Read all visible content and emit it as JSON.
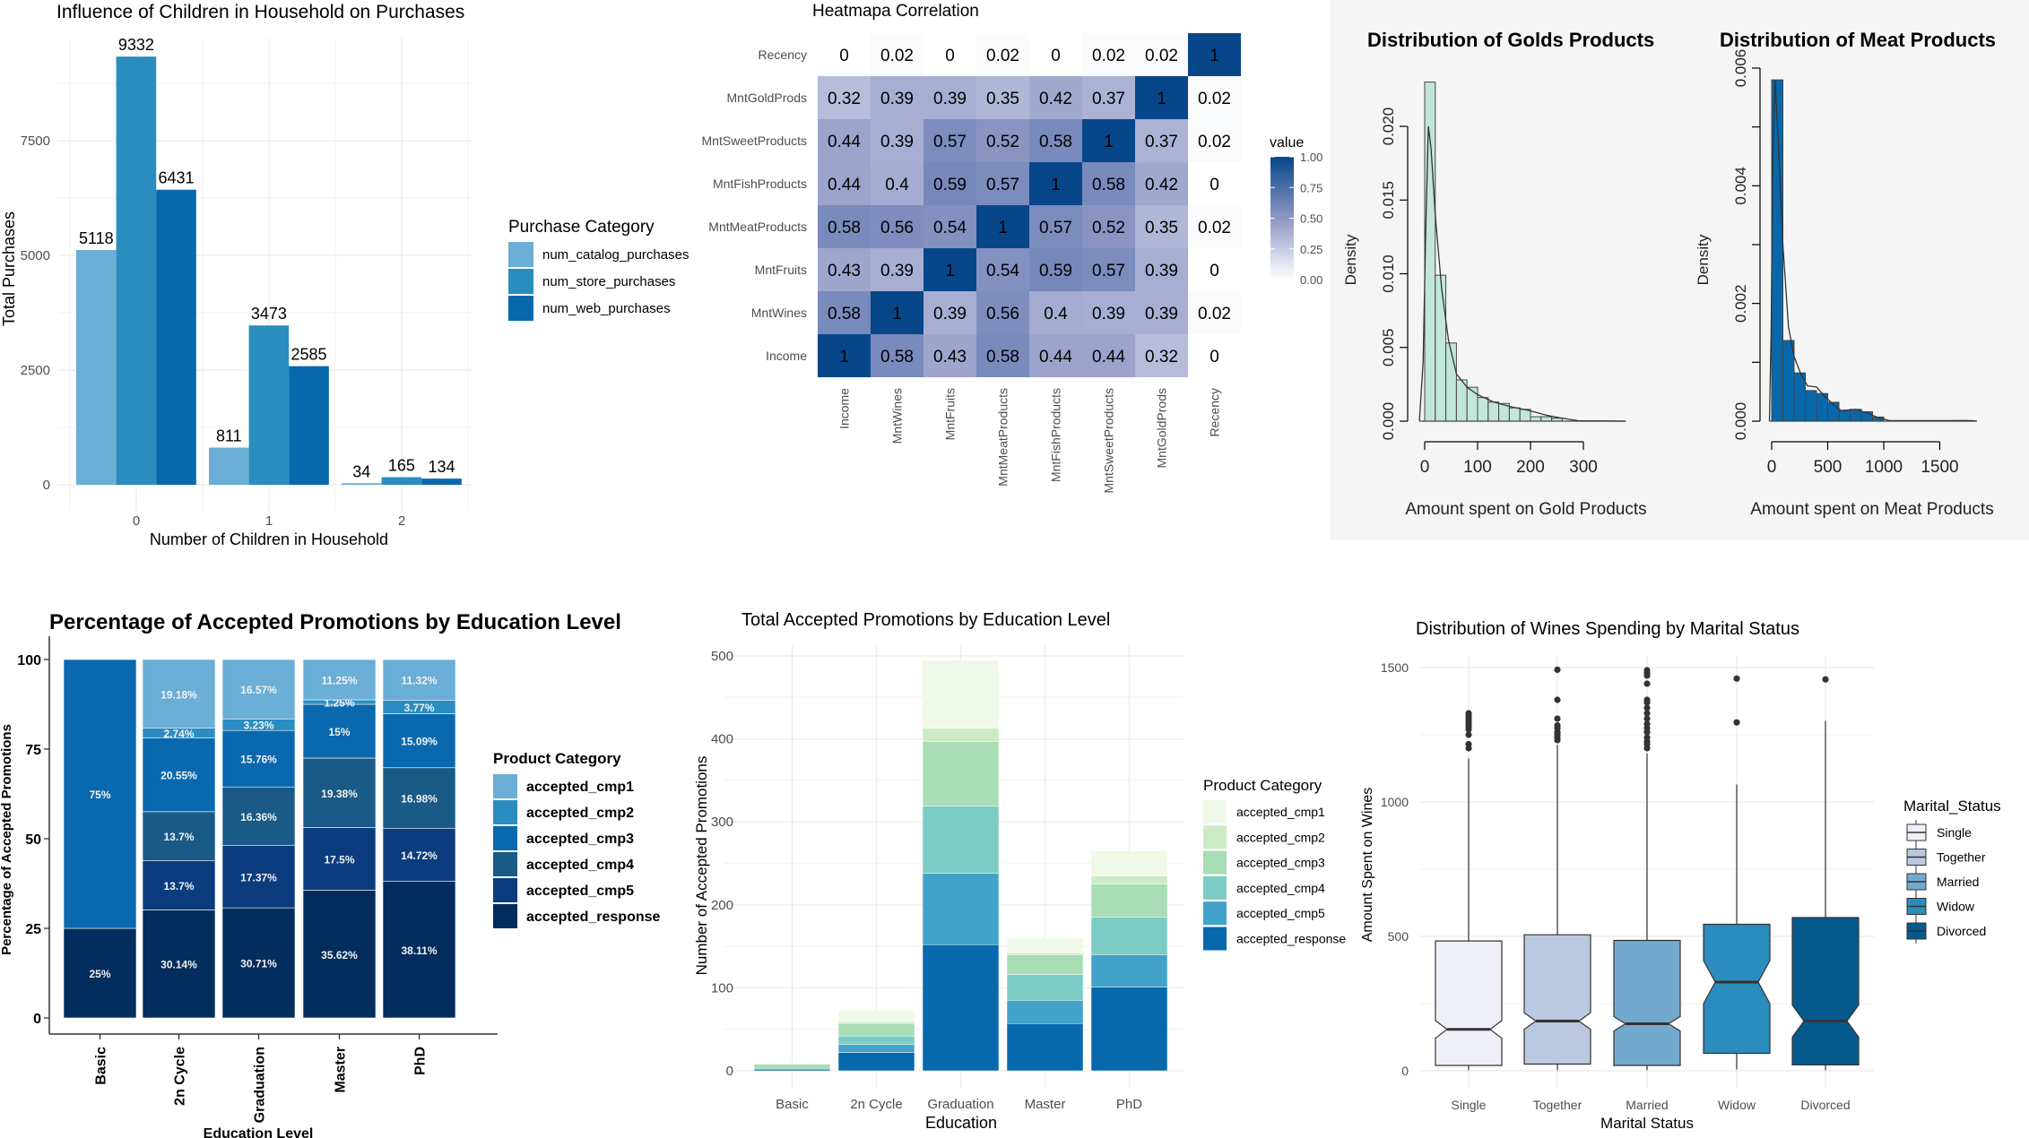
{
  "colors": {
    "purchase": [
      "#6baed6",
      "#2b8cbe",
      "#0868ac"
    ],
    "pct": [
      "#6baed6",
      "#2b8cc2",
      "#0a69ae",
      "#1a5a86",
      "#0b3c7e",
      "#022d5c"
    ],
    "count": [
      "#f0f9e8",
      "#ccebc5",
      "#a8ddb5",
      "#7bccc4",
      "#43a2ca",
      "#0868ac"
    ],
    "marital": [
      "#eff0f7",
      "#bac8e0",
      "#74a9cf",
      "#2b8cbe",
      "#045a8d"
    ],
    "gold_fill": "#c2e6da",
    "meat_fill": "#0868ac",
    "heat_low": "#ffffff",
    "heat_mid": "#8e97c5",
    "heat_high": "#08468a",
    "hist_panel_bg": "#f5f5f5"
  },
  "chart_data": [
    {
      "type": "bar",
      "title": "Influence of Children in Household on Purchases",
      "xlabel": "Number of Children in Household",
      "ylabel": "Total Purchases",
      "categories": [
        "0",
        "1",
        "2"
      ],
      "yticks": [
        "0",
        "2500",
        "5000",
        "7500"
      ],
      "ylim": [
        0,
        10200
      ],
      "legend_title": "Purchase Category",
      "legend_position": "right",
      "series": [
        {
          "name": "num_catalog_purchases",
          "values": [
            5118,
            811,
            34
          ]
        },
        {
          "name": "num_store_purchases",
          "values": [
            9332,
            3473,
            165
          ]
        },
        {
          "name": "num_web_purchases",
          "values": [
            6431,
            2585,
            134
          ]
        }
      ]
    },
    {
      "type": "heatmap",
      "title": "Heatmapa Correlation",
      "variables": [
        "Income",
        "MntWines",
        "MntFruits",
        "MntMeatProducts",
        "MntFishProducts",
        "MntSweetProducts",
        "MntGoldProds",
        "Recency"
      ],
      "matrix": [
        [
          1,
          0.58,
          0.43,
          0.58,
          0.44,
          0.44,
          0.32,
          0
        ],
        [
          0.58,
          1,
          0.39,
          0.56,
          0.4,
          0.39,
          0.39,
          0.02
        ],
        [
          0.43,
          0.39,
          1,
          0.54,
          0.59,
          0.57,
          0.39,
          0
        ],
        [
          0.58,
          0.56,
          0.54,
          1,
          0.57,
          0.52,
          0.35,
          0.02
        ],
        [
          0.44,
          0.4,
          0.59,
          0.57,
          1,
          0.58,
          0.42,
          0
        ],
        [
          0.44,
          0.39,
          0.57,
          0.52,
          0.58,
          1,
          0.37,
          0.02
        ],
        [
          0.32,
          0.39,
          0.39,
          0.35,
          0.42,
          0.37,
          1,
          0.02
        ],
        [
          0,
          0.02,
          0,
          0.02,
          0,
          0.02,
          0.02,
          1
        ]
      ],
      "legend_title": "value",
      "legend_ticks": [
        "1.00",
        "0.75",
        "0.50",
        "0.25",
        "0.00"
      ],
      "range": [
        0,
        1
      ]
    },
    {
      "type": "histogram",
      "title": "Distribution of Golds Products",
      "xlabel": "Amount spent on Gold Products",
      "ylabel": "Density",
      "bin_width": 20,
      "bin_start": 0,
      "densities": [
        0.023,
        0.0099,
        0.0053,
        0.0028,
        0.0023,
        0.0016,
        0.0013,
        0.0012,
        0.0009,
        0.0008,
        0.0003,
        0.0003,
        0.0002
      ],
      "xticks": [
        "0",
        "100",
        "200",
        "300"
      ],
      "yticks": [
        "0.000",
        "0.005",
        "0.010",
        "0.015",
        "0.020"
      ],
      "xlim": [
        -10,
        380
      ],
      "density_curve": [
        [
          -10,
          0
        ],
        [
          -3,
          0.004
        ],
        [
          2,
          0.013
        ],
        [
          7,
          0.02
        ],
        [
          12,
          0.0185
        ],
        [
          20,
          0.014
        ],
        [
          32,
          0.009
        ],
        [
          45,
          0.0055
        ],
        [
          60,
          0.0032
        ],
        [
          80,
          0.0023
        ],
        [
          100,
          0.0018
        ],
        [
          130,
          0.0013
        ],
        [
          160,
          0.001
        ],
        [
          200,
          0.0007
        ],
        [
          230,
          0.0004
        ],
        [
          260,
          0.0002
        ],
        [
          290,
          3e-05
        ],
        [
          380,
          0
        ]
      ]
    },
    {
      "type": "histogram",
      "title": "Distribution of Meat Products",
      "xlabel": "Amount spent on Meat Products",
      "ylabel": "Density",
      "bin_width": 100,
      "bin_start": 0,
      "densities": [
        0.0058,
        0.00137,
        0.00082,
        0.00052,
        0.00047,
        0.00032,
        0.00018,
        0.0002,
        0.00016,
        7e-05,
        0,
        0,
        0,
        0,
        0,
        0,
        1e-05,
        1e-05
      ],
      "xticks": [
        "0",
        "500",
        "1000",
        "1500"
      ],
      "yticks": [
        "0.000",
        "0.002",
        "0.004",
        "0.006"
      ],
      "xlim": [
        -20,
        1830
      ],
      "density_curve": [
        [
          -20,
          0
        ],
        [
          -5,
          0.0015
        ],
        [
          10,
          0.0045
        ],
        [
          30,
          0.0058
        ],
        [
          60,
          0.0047
        ],
        [
          100,
          0.003
        ],
        [
          150,
          0.0016
        ],
        [
          200,
          0.0011
        ],
        [
          260,
          0.0008
        ],
        [
          320,
          0.0006
        ],
        [
          400,
          0.00058
        ],
        [
          460,
          0.00045
        ],
        [
          550,
          0.00028
        ],
        [
          620,
          0.00018
        ],
        [
          750,
          0.0002
        ],
        [
          850,
          0.00014
        ],
        [
          950,
          6e-05
        ],
        [
          1050,
          1e-05
        ],
        [
          1600,
          1e-05
        ],
        [
          1750,
          1e-05
        ],
        [
          1830,
          0
        ]
      ]
    },
    {
      "type": "bar",
      "stacked": "percent",
      "title": "Percentage of Accepted Promotions by Education Level",
      "xlabel": "Education Level",
      "ylabel": "Percentage of Accepted Promotions",
      "categories": [
        "Basic",
        "2n Cycle",
        "Graduation",
        "Master",
        "PhD"
      ],
      "yticks": [
        "0",
        "25",
        "50",
        "75",
        "100"
      ],
      "ylim": [
        0,
        100
      ],
      "legend_title": "Product Category",
      "series": [
        {
          "name": "accepted_cmp1",
          "values": [
            0,
            19.18,
            16.57,
            11.25,
            11.32
          ]
        },
        {
          "name": "accepted_cmp2",
          "values": [
            0,
            2.74,
            3.23,
            1.25,
            3.77
          ]
        },
        {
          "name": "accepted_cmp3",
          "values": [
            75,
            20.55,
            15.76,
            15,
            15.09
          ]
        },
        {
          "name": "accepted_cmp4",
          "values": [
            0,
            13.7,
            16.36,
            19.38,
            16.98
          ]
        },
        {
          "name": "accepted_cmp5",
          "values": [
            0,
            13.7,
            17.37,
            17.5,
            14.72
          ]
        },
        {
          "name": "accepted_response",
          "values": [
            25,
            30.14,
            30.71,
            35.62,
            38.11
          ]
        }
      ]
    },
    {
      "type": "bar",
      "stacked": "count",
      "title": "Total Accepted Promotions by Education Level",
      "xlabel": "Education",
      "ylabel": "Number of Accepted Promotions",
      "categories": [
        "Basic",
        "2n Cycle",
        "Graduation",
        "Master",
        "PhD"
      ],
      "yticks": [
        "0",
        "100",
        "200",
        "300",
        "400",
        "500"
      ],
      "ylim": [
        0,
        520
      ],
      "legend_title": "Product Category",
      "series": [
        {
          "name": "accepted_cmp1",
          "values": [
            0,
            14,
            82,
            18,
            30
          ]
        },
        {
          "name": "accepted_cmp2",
          "values": [
            0,
            2,
            16,
            2,
            10
          ]
        },
        {
          "name": "accepted_cmp3",
          "values": [
            6,
            15,
            78,
            24,
            40
          ]
        },
        {
          "name": "accepted_cmp4",
          "values": [
            0,
            10,
            81,
            31,
            45
          ]
        },
        {
          "name": "accepted_cmp5",
          "values": [
            0,
            10,
            86,
            28,
            39
          ]
        },
        {
          "name": "accepted_response",
          "values": [
            2,
            22,
            152,
            57,
            101
          ]
        }
      ]
    },
    {
      "type": "boxplot",
      "title": "Distribution of Wines Spending by Marital Status",
      "xlabel": "Marital Status",
      "ylabel": "Amount Spent on Wines",
      "legend_title": "Marital_Status",
      "yticks": [
        "0",
        "500",
        "1000",
        "1500"
      ],
      "ylim": [
        -50,
        1600
      ],
      "groups": [
        {
          "name": "Single",
          "min": 2,
          "q1": 20,
          "median": 154,
          "q3": 483,
          "max": 1162,
          "notch": 33,
          "outliers": [
            1200,
            1215,
            1250,
            1270,
            1280,
            1290,
            1300,
            1310,
            1320,
            1330
          ]
        },
        {
          "name": "Together",
          "min": 2,
          "q1": 25,
          "median": 185,
          "q3": 506,
          "max": 1212,
          "notch": 31,
          "outliers": [
            1230,
            1240,
            1250,
            1260,
            1275,
            1285,
            1310,
            1380,
            1492
          ]
        },
        {
          "name": "Married",
          "min": 2,
          "q1": 20,
          "median": 175,
          "q3": 485,
          "max": 1181,
          "notch": 27,
          "outliers": [
            1200,
            1215,
            1225,
            1240,
            1260,
            1275,
            1290,
            1310,
            1330,
            1350,
            1370,
            1380,
            1440,
            1470,
            1480,
            1490
          ]
        },
        {
          "name": "Widow",
          "min": 5,
          "q1": 65,
          "median": 330,
          "q3": 545,
          "max": 1065,
          "notch": 80,
          "outliers": [
            1296,
            1459
          ]
        },
        {
          "name": "Divorced",
          "min": 2,
          "q1": 22,
          "median": 185,
          "q3": 570,
          "max": 1302,
          "notch": 60,
          "outliers": [
            1456
          ]
        }
      ]
    }
  ]
}
